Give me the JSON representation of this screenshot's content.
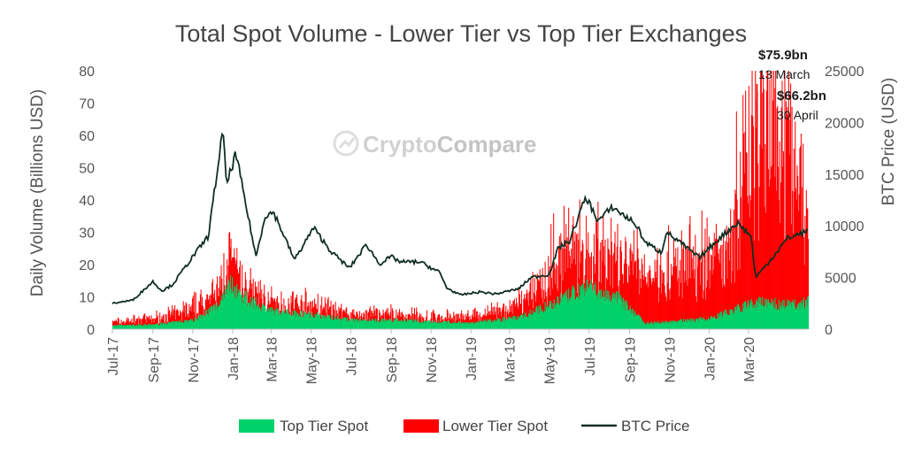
{
  "chart_data": {
    "type": "bar",
    "title": "Total Spot Volume - Lower Tier vs Top Tier Exchanges",
    "ylabel_left": "Daily Volume (Billions USD)",
    "ylabel_right": "BTC Price (USD)",
    "ylim_left": [
      0,
      80
    ],
    "ylim_right": [
      0,
      25000
    ],
    "yticks_left": [
      "0",
      "10",
      "20",
      "30",
      "40",
      "50",
      "60",
      "70",
      "80"
    ],
    "yticks_right": [
      "0",
      "5000",
      "10000",
      "15000",
      "20000",
      "25000"
    ],
    "xticks": [
      "Jul-17",
      "Sep-17",
      "Nov-17",
      "Jan-18",
      "Mar-18",
      "May-18",
      "Jul-18",
      "Sep-18",
      "Nov-18",
      "Jan-19",
      "Mar-19",
      "May-19",
      "Jul-19",
      "Sep-19",
      "Nov-19",
      "Jan-20",
      "Mar-20"
    ],
    "x_range": [
      "2017-07-01",
      "2020-05-31"
    ],
    "grid": false,
    "legend_position": "bottom",
    "watermark": {
      "part1": "Crypto",
      "part2": "Compare"
    },
    "colors": {
      "top": "#00d26a",
      "lower": "#ff0000",
      "btc": "#0f2e22"
    },
    "series": [
      {
        "name": "Top Tier Spot",
        "type": "bar",
        "axis": "left",
        "x": [
          "2017-07-01",
          "2017-09-01",
          "2017-11-01",
          "2017-12-10",
          "2017-12-25",
          "2018-01-15",
          "2018-03-01",
          "2018-05-01",
          "2018-07-01",
          "2018-09-01",
          "2018-11-01",
          "2019-01-01",
          "2019-03-15",
          "2019-05-01",
          "2019-06-25",
          "2019-08-15",
          "2019-09-25",
          "2019-11-01",
          "2020-01-01",
          "2020-03-13",
          "2020-04-30",
          "2020-05-31"
        ],
        "values": [
          1.2,
          1.5,
          3,
          8,
          16,
          11,
          6,
          5,
          3,
          3,
          2.5,
          2,
          4,
          8,
          14,
          10,
          2,
          2.5,
          3.5,
          9,
          8,
          9
        ]
      },
      {
        "name": "Lower Tier Spot",
        "type": "bar",
        "axis": "left",
        "x": [
          "2017-07-01",
          "2017-09-01",
          "2017-11-01",
          "2017-12-10",
          "2017-12-25",
          "2018-01-15",
          "2018-03-01",
          "2018-05-01",
          "2018-07-01",
          "2018-09-01",
          "2018-11-01",
          "2019-01-01",
          "2019-03-15",
          "2019-04-15",
          "2019-05-15",
          "2019-06-25",
          "2019-08-15",
          "2019-09-25",
          "2019-11-01",
          "2020-01-01",
          "2020-02-01",
          "2020-03-13",
          "2020-04-30",
          "2020-05-31"
        ],
        "values": [
          2.5,
          3.5,
          7,
          12,
          24,
          15,
          9,
          8,
          5,
          5,
          4,
          4,
          8,
          15,
          25,
          30,
          22,
          19,
          20,
          24,
          30,
          76,
          66.2,
          40
        ]
      },
      {
        "name": "BTC Price",
        "type": "line",
        "axis": "right",
        "x": [
          "2017-07-01",
          "2017-08-01",
          "2017-09-01",
          "2017-09-15",
          "2017-10-01",
          "2017-11-01",
          "2017-11-25",
          "2017-12-17",
          "2017-12-23",
          "2018-01-06",
          "2018-02-06",
          "2018-02-20",
          "2018-03-05",
          "2018-04-06",
          "2018-05-05",
          "2018-06-01",
          "2018-06-29",
          "2018-07-25",
          "2018-08-14",
          "2018-09-01",
          "2018-09-15",
          "2018-10-15",
          "2018-11-14",
          "2018-11-25",
          "2018-12-15",
          "2019-01-15",
          "2019-02-08",
          "2019-03-15",
          "2019-04-03",
          "2019-05-01",
          "2019-05-15",
          "2019-06-01",
          "2019-06-26",
          "2019-07-15",
          "2019-08-06",
          "2019-09-10",
          "2019-09-25",
          "2019-10-20",
          "2019-10-27",
          "2019-11-15",
          "2019-12-17",
          "2020-01-15",
          "2020-02-13",
          "2020-03-05",
          "2020-03-12",
          "2020-03-31",
          "2020-04-30",
          "2020-05-31"
        ],
        "values": [
          2500,
          2800,
          4600,
          3700,
          4300,
          7000,
          9000,
          19200,
          14000,
          17000,
          7000,
          11000,
          11300,
          6700,
          9800,
          7500,
          5900,
          8200,
          6300,
          7000,
          6500,
          6500,
          5500,
          4000,
          3300,
          3600,
          3400,
          3900,
          5000,
          5300,
          7900,
          8500,
          12800,
          10500,
          11800,
          10200,
          8400,
          7400,
          9400,
          8500,
          6900,
          8700,
          10300,
          9000,
          5000,
          6400,
          8800,
          9500
        ]
      }
    ],
    "annotations": [
      {
        "value": "$75.9bn",
        "date": "13 March"
      },
      {
        "value": "$66.2bn",
        "date": "30 April"
      }
    ]
  },
  "legend": {
    "top": "Top Tier Spot",
    "lower": "Lower Tier Spot",
    "btc": "BTC Price"
  }
}
